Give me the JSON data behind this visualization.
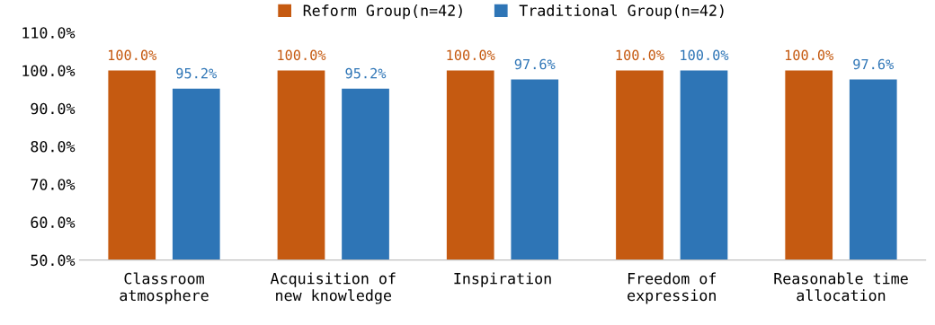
{
  "chart_data": {
    "type": "bar",
    "categories": [
      "Classroom\natmosphere",
      "Acquisition of\nnew knowledge",
      "Inspiration",
      "Freedom of\nexpression",
      "Reasonable time\nallocation"
    ],
    "series": [
      {
        "name": "Reform Group(n=42)",
        "color": "#c55a11",
        "values": [
          100.0,
          100.0,
          100.0,
          100.0,
          100.0
        ],
        "value_labels": [
          "100.0%",
          "100.0%",
          "100.0%",
          "100.0%",
          "100.0%"
        ]
      },
      {
        "name": "Traditional Group(n=42)",
        "color": "#2e75b6",
        "values": [
          95.2,
          95.2,
          97.6,
          100.0,
          97.6
        ],
        "value_labels": [
          "95.2%",
          "95.2%",
          "97.6%",
          "100.0%",
          "97.6%"
        ]
      }
    ],
    "ylim": [
      50,
      110
    ],
    "yticks": [
      {
        "value": 50,
        "label": "50.0%"
      },
      {
        "value": 60,
        "label": "60.0%"
      },
      {
        "value": 70,
        "label": "70.0%"
      },
      {
        "value": 80,
        "label": "80.0%"
      },
      {
        "value": 90,
        "label": "90.0%"
      },
      {
        "value": 100,
        "label": "100.0%"
      },
      {
        "value": 110,
        "label": "110.0%"
      }
    ],
    "grid": false,
    "legend": "top"
  }
}
